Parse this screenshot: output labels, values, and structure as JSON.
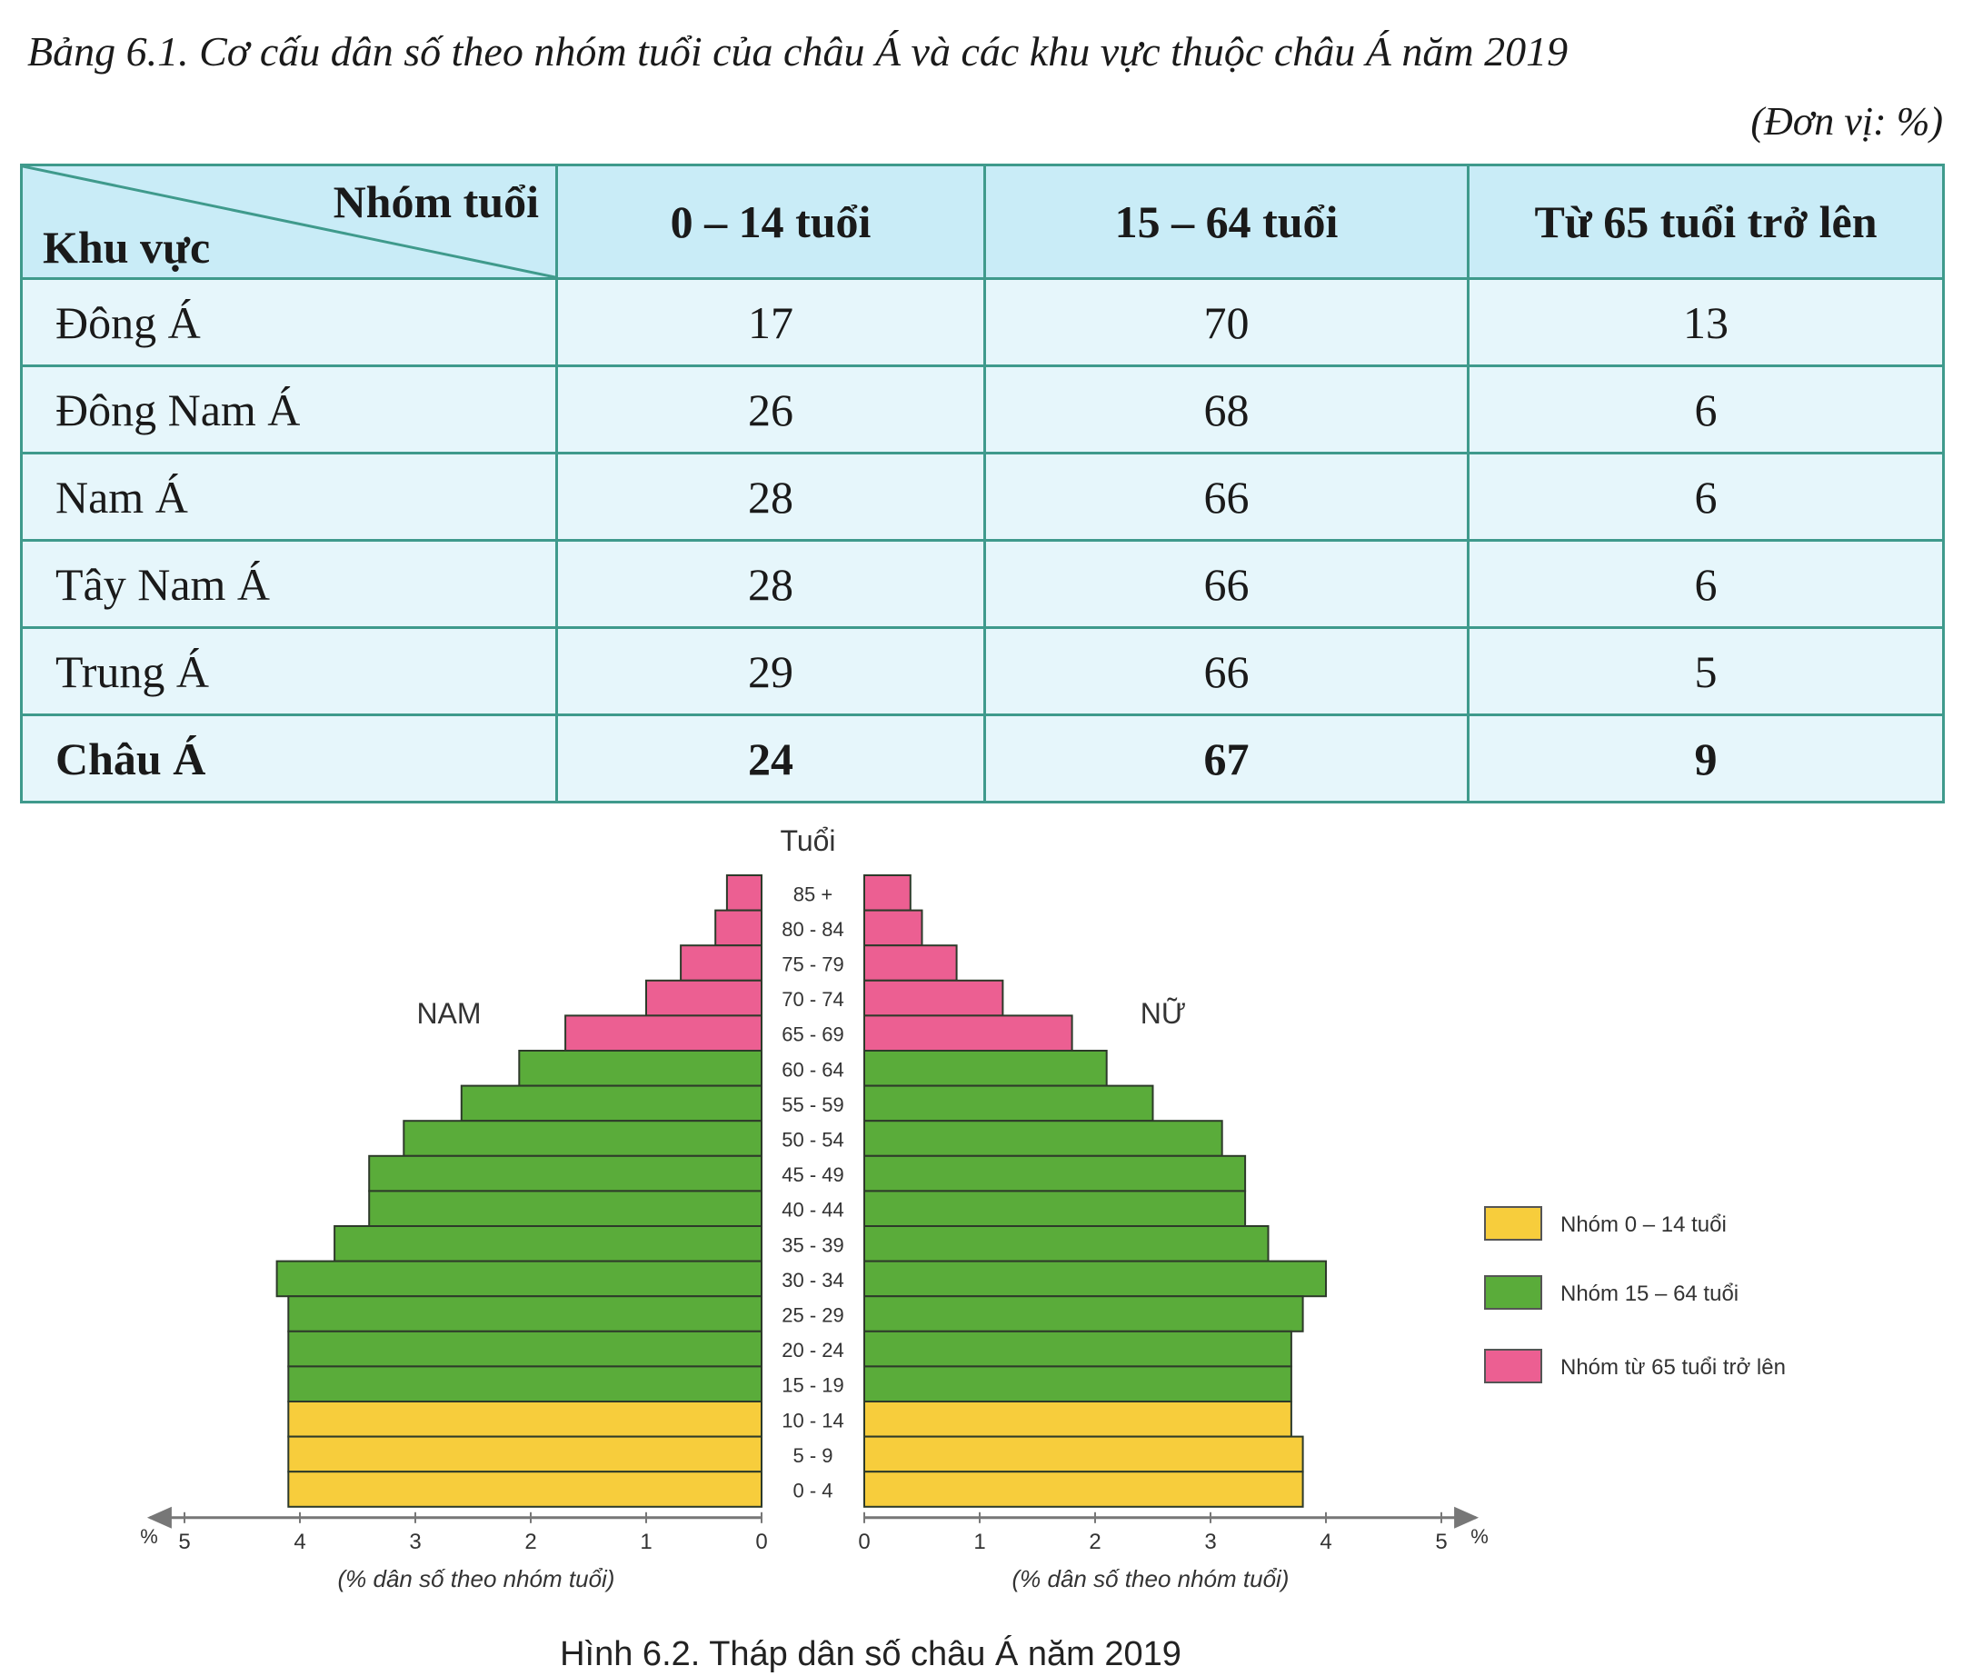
{
  "table": {
    "title": "Bảng 6.1. Cơ cấu dân số theo nhóm tuổi của châu Á và các khu vực thuộc châu Á năm 2019",
    "unit": "(Đơn vị: %)",
    "header_col_label": "Nhóm tuổi",
    "header_row_label": "Khu vực",
    "columns": [
      "0 – 14 tuổi",
      "15 – 64 tuổi",
      "Từ 65 tuổi trở lên"
    ],
    "rows": [
      {
        "region": "Đông Á",
        "values": [
          "17",
          "70",
          "13"
        ]
      },
      {
        "region": "Đông Nam Á",
        "values": [
          "26",
          "68",
          "6"
        ]
      },
      {
        "region": "Nam Á",
        "values": [
          "28",
          "66",
          "6"
        ]
      },
      {
        "region": "Tây Nam Á",
        "values": [
          "28",
          "66",
          "6"
        ]
      },
      {
        "region": "Trung Á",
        "values": [
          "29",
          "66",
          "5"
        ]
      },
      {
        "region": "Châu Á",
        "values": [
          "24",
          "67",
          "9"
        ],
        "bold": true
      }
    ]
  },
  "chart_data": {
    "type": "bar",
    "subtype": "population-pyramid",
    "title": "Hình 6.2. Tháp dân số châu Á năm 2019",
    "y_axis_label": "Tuổi",
    "left_label": "NAM",
    "right_label": "NỮ",
    "xlabel_left": "(% dân số theo nhóm tuổi)",
    "xlabel_right": "(% dân số theo nhóm tuổi)",
    "x_unit": "%",
    "xlim": [
      0,
      5
    ],
    "x_ticks": [
      "0",
      "1",
      "2",
      "3",
      "4",
      "5"
    ],
    "categories": [
      "85 +",
      "80 - 84",
      "75 - 79",
      "70 - 74",
      "65 - 69",
      "60 - 64",
      "55 - 59",
      "50 - 54",
      "45 - 49",
      "40 - 44",
      "35 - 39",
      "30 - 34",
      "25 - 29",
      "20 - 24",
      "15 - 19",
      "10 - 14",
      "5 - 9",
      "0 - 4"
    ],
    "series": [
      {
        "name": "NAM",
        "values": [
          0.3,
          0.4,
          0.7,
          1.0,
          1.7,
          2.1,
          2.6,
          3.1,
          3.4,
          3.4,
          3.7,
          4.2,
          4.1,
          4.1,
          4.1,
          4.1,
          4.1,
          4.1
        ]
      },
      {
        "name": "NỮ",
        "values": [
          0.4,
          0.5,
          0.8,
          1.2,
          1.8,
          2.1,
          2.5,
          3.1,
          3.3,
          3.3,
          3.5,
          4.0,
          3.8,
          3.7,
          3.7,
          3.7,
          3.8,
          3.8
        ]
      }
    ],
    "groups": [
      {
        "label": "Nhóm 0 – 14 tuổi",
        "color": "#f7cd3c",
        "ages": [
          "10 - 14",
          "5 - 9",
          "0 - 4"
        ]
      },
      {
        "label": "Nhóm 15 – 64 tuổi",
        "color": "#5aac3a",
        "ages": [
          "60 - 64",
          "55 - 59",
          "50 - 54",
          "45 - 49",
          "40 - 44",
          "35 - 39",
          "30 - 34",
          "25 - 29",
          "20 - 24",
          "15 - 19"
        ]
      },
      {
        "label": "Nhóm từ 65 tuổi trở lên",
        "color": "#ec5f92",
        "ages": [
          "85 +",
          "80 - 84",
          "75 - 79",
          "70 - 74",
          "65 - 69"
        ]
      }
    ],
    "legend_position": "right",
    "grid": false
  }
}
